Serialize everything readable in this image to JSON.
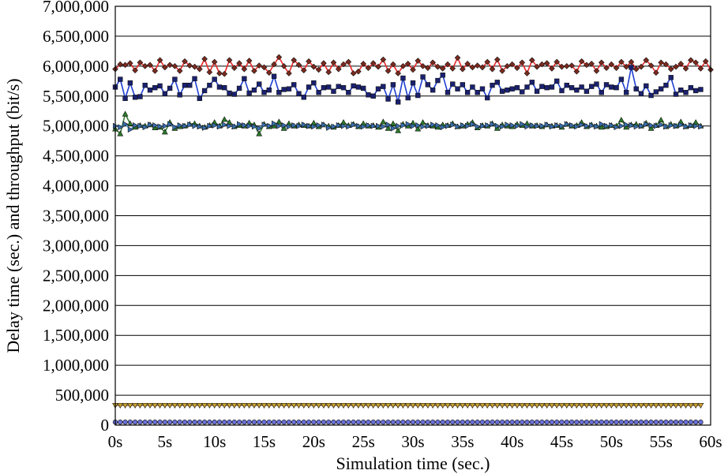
{
  "chart_data": {
    "type": "line",
    "xlabel": "Simulation time (sec.)",
    "ylabel": "Delay time (sec.) and throughput (bit/s)",
    "xlim": [
      0,
      60
    ],
    "ylim": [
      0,
      7000000
    ],
    "x_ticks": [
      {
        "value": 0,
        "label": "0s"
      },
      {
        "value": 5,
        "label": "5s"
      },
      {
        "value": 10,
        "label": "10s"
      },
      {
        "value": 15,
        "label": "15s"
      },
      {
        "value": 20,
        "label": "20s"
      },
      {
        "value": 25,
        "label": "25s"
      },
      {
        "value": 30,
        "label": "30s"
      },
      {
        "value": 35,
        "label": "35s"
      },
      {
        "value": 40,
        "label": "40s"
      },
      {
        "value": 45,
        "label": "45s"
      },
      {
        "value": 50,
        "label": "50s"
      },
      {
        "value": 55,
        "label": "55s"
      },
      {
        "value": 60,
        "label": "60s"
      }
    ],
    "y_ticks": [
      {
        "value": 0,
        "label": "0"
      },
      {
        "value": 500000,
        "label": "500,000"
      },
      {
        "value": 1000000,
        "label": "1,000,000"
      },
      {
        "value": 1500000,
        "label": "1,500,000"
      },
      {
        "value": 2000000,
        "label": "2,000,000"
      },
      {
        "value": 2500000,
        "label": "2,500,000"
      },
      {
        "value": 3000000,
        "label": "3,000,000"
      },
      {
        "value": 3500000,
        "label": "3,500,000"
      },
      {
        "value": 4000000,
        "label": "4,000,000"
      },
      {
        "value": 4500000,
        "label": "4,500,000"
      },
      {
        "value": 5000000,
        "label": "5,000,000"
      },
      {
        "value": 5500000,
        "label": "5,500,000"
      },
      {
        "value": 6000000,
        "label": "6,000,000"
      },
      {
        "value": 6500000,
        "label": "6,500,000"
      },
      {
        "value": 7000000,
        "label": "7,000,000"
      }
    ],
    "grid": "horizontal",
    "legend": "none",
    "x_start": 0,
    "x_step": 0.5,
    "series": [
      {
        "color": "#e8282a",
        "marker_color": "#7a2a1e",
        "marker": "diamond",
        "values": [
          5950000,
          6030000,
          6020000,
          6050000,
          5930000,
          6060000,
          6000000,
          6020000,
          5920000,
          6100000,
          5980000,
          6020000,
          6000000,
          5920000,
          6080000,
          6010000,
          5990000,
          5950000,
          6120000,
          5900000,
          6070000,
          5880000,
          5870000,
          6100000,
          5970000,
          6050000,
          5950000,
          6090000,
          5920000,
          6010000,
          5980000,
          5890000,
          6030000,
          6150000,
          6000000,
          5880000,
          6100000,
          6020000,
          5930000,
          6080000,
          5990000,
          5940000,
          6050000,
          5900000,
          6060000,
          5950000,
          6030000,
          6070000,
          5880000,
          5910000,
          6040000,
          5970000,
          6050000,
          5990000,
          6110000,
          5920000,
          6030000,
          5880000,
          6000000,
          6040000,
          5940000,
          6090000,
          6000000,
          5970000,
          6060000,
          5990000,
          5960000,
          6030000,
          5960000,
          6140000,
          5950000,
          6040000,
          5980000,
          6010000,
          5980000,
          6070000,
          5950000,
          6110000,
          5920000,
          6000000,
          6030000,
          5970000,
          6060000,
          5880000,
          6100000,
          5990000,
          6030000,
          6050000,
          5960000,
          6070000,
          5990000,
          6000000,
          6010000,
          5910000,
          6080000,
          6020000,
          6040000,
          5920000,
          6060000,
          5970000,
          6030000,
          5970000,
          6070000,
          5990000,
          6070000,
          5950000,
          5990000,
          6100000,
          6010000,
          5890000,
          6060000,
          6030000,
          5950000,
          5990000,
          6040000,
          5960000,
          6100000,
          6060000,
          5960000,
          6080000,
          5940000
        ]
      },
      {
        "color": "#1f3fd0",
        "marker_color": "#1a2170",
        "marker": "square",
        "values": [
          5650000,
          5780000,
          5460000,
          5720000,
          5480000,
          5490000,
          5680000,
          5600000,
          5640000,
          5670000,
          5540000,
          5630000,
          5780000,
          5520000,
          5680000,
          5680000,
          5790000,
          5460000,
          5590000,
          5680000,
          5780000,
          5650000,
          5640000,
          5550000,
          5530000,
          5630000,
          5790000,
          5550000,
          5600000,
          5700000,
          5560000,
          5600000,
          5830000,
          5560000,
          5610000,
          5620000,
          5690000,
          5540000,
          5480000,
          5650000,
          5720000,
          5560000,
          5640000,
          5650000,
          5580000,
          5660000,
          5640000,
          5560000,
          5670000,
          5650000,
          5630000,
          5520000,
          5500000,
          5620000,
          5660000,
          5450000,
          5690000,
          5400000,
          5800000,
          5470000,
          5720000,
          5510000,
          5820000,
          5690000,
          5600000,
          5760000,
          5850000,
          5560000,
          5700000,
          5620000,
          5690000,
          5560000,
          5650000,
          5560000,
          5620000,
          5470000,
          5680000,
          5730000,
          5580000,
          5600000,
          5620000,
          5640000,
          5570000,
          5650000,
          5730000,
          5580000,
          5660000,
          5640000,
          5650000,
          5750000,
          5590000,
          5680000,
          5640000,
          5600000,
          5650000,
          5580000,
          5660000,
          5700000,
          5560000,
          5690000,
          5650000,
          5640000,
          5780000,
          5560000,
          5980000,
          5620000,
          5540000,
          5670000,
          5510000,
          5570000,
          5620000,
          5680000,
          5810000,
          5530000,
          5600000,
          5560000,
          5640000,
          5590000,
          5610000
        ]
      },
      {
        "color": "#3c7f3a",
        "marker_color": "#2a7a2a",
        "marker": "triangle-up",
        "values": [
          4950000,
          4870000,
          5200000,
          5040000,
          4980000,
          5010000,
          5000000,
          5020000,
          4970000,
          4980000,
          4900000,
          5060000,
          4960000,
          4990000,
          5000000,
          5030000,
          5040000,
          5000000,
          4980000,
          5010000,
          5060000,
          5000000,
          5110000,
          5060000,
          4990000,
          5010000,
          5000000,
          5050000,
          5020000,
          4870000,
          5030000,
          4990000,
          5000000,
          5070000,
          4960000,
          5040000,
          5000000,
          5020000,
          5010000,
          5000000,
          5050000,
          4990000,
          5020000,
          5000000,
          4980000,
          5010000,
          5060000,
          5010000,
          5030000,
          4990000,
          5040000,
          5000000,
          5010000,
          4980000,
          5070000,
          4960000,
          5040000,
          4920000,
          5030000,
          5000000,
          5050000,
          4950000,
          5060000,
          5010000,
          5000000,
          4980000,
          5020000,
          5010000,
          5040000,
          4990000,
          5000000,
          5030000,
          5060000,
          4970000,
          5010000,
          5000000,
          5040000,
          4960000,
          5020000,
          5000000,
          4990000,
          5030000,
          5010000,
          5040000,
          5000000,
          5010000,
          4990000,
          5020000,
          5000000,
          5010000,
          4980000,
          5030000,
          5000000,
          5010000,
          5060000,
          4990000,
          5020000,
          5000000,
          4980000,
          4990000,
          5010000,
          5000000,
          5100000,
          4980000,
          5020000,
          5030000,
          5000000,
          5050000,
          4960000,
          5010000,
          5100000,
          4990000,
          5030000,
          5000000,
          5070000,
          4990000,
          5010000,
          5060000,
          5000000
        ]
      },
      {
        "color": "#4ea8e0",
        "marker_color": "#3a6fb0",
        "marker": "triangle-right",
        "values": [
          5000000,
          4980000,
          5030000,
          4940000,
          5010000,
          5000000,
          4980000,
          5020000,
          5010000,
          4990000,
          5000000,
          5030000,
          4980000,
          5010000,
          5000000,
          5020000,
          5000000,
          4990000,
          4970000,
          5000000,
          5010000,
          4990000,
          5020000,
          5000000,
          4990000,
          5030000,
          5010000,
          5000000,
          4990000,
          4960000,
          5020000,
          5000000,
          5040000,
          5000000,
          5010000,
          4990000,
          5010000,
          5000000,
          5020000,
          5000000,
          4990000,
          5010000,
          5020000,
          4970000,
          4990000,
          5010000,
          5000000,
          4990000,
          5020000,
          5000000,
          4990000,
          5010000,
          5000000,
          5000000,
          4990000,
          5020000,
          4960000,
          5000000,
          5010000,
          5030000,
          5000000,
          5010000,
          4990000,
          5000000,
          5020000,
          5010000,
          4980000,
          5000000,
          5020000,
          4990000,
          5010000,
          5000000,
          5030000,
          4990000,
          5000000,
          5010000,
          5030000,
          5000000,
          4990000,
          5020000,
          5010000,
          5000000,
          5030000,
          4990000,
          5010000,
          5000000,
          5000000,
          5020000,
          4990000,
          5010000,
          5000000,
          5030000,
          5010000,
          4990000,
          5020000,
          5000000,
          5010000,
          4990000,
          5030000,
          5000000,
          5010000,
          4980000,
          5000000,
          5020000,
          5010000,
          4990000,
          5000000,
          5030000,
          5010000,
          5000000,
          5020000,
          4990000,
          5010000,
          5000000,
          5020000,
          4990000,
          5010000,
          5000000,
          4990000
        ]
      },
      {
        "color": "#8a6a2a",
        "marker_color": "#c9a030",
        "marker": "triangle-down",
        "values": [
          330000,
          330000,
          330000,
          330000,
          330000,
          330000,
          330000,
          330000,
          330000,
          330000,
          330000,
          330000,
          330000,
          330000,
          330000,
          330000,
          330000,
          330000,
          330000,
          330000,
          330000,
          330000,
          330000,
          330000,
          330000,
          330000,
          330000,
          330000,
          330000,
          330000,
          330000,
          330000,
          330000,
          330000,
          330000,
          330000,
          330000,
          330000,
          330000,
          330000,
          330000,
          330000,
          330000,
          330000,
          330000,
          330000,
          330000,
          330000,
          330000,
          330000,
          330000,
          330000,
          330000,
          330000,
          330000,
          330000,
          330000,
          330000,
          330000,
          330000,
          330000,
          330000,
          330000,
          330000,
          330000,
          330000,
          330000,
          330000,
          330000,
          330000,
          330000,
          330000,
          330000,
          330000,
          330000,
          330000,
          330000,
          330000,
          330000,
          330000,
          330000,
          330000,
          330000,
          330000,
          330000,
          330000,
          330000,
          330000,
          330000,
          330000,
          330000,
          330000,
          330000,
          330000,
          330000,
          330000,
          330000,
          330000,
          330000,
          330000,
          330000,
          330000,
          330000,
          330000,
          330000,
          330000,
          330000,
          330000,
          330000,
          330000,
          330000,
          330000,
          330000,
          330000,
          330000,
          330000,
          330000,
          330000,
          330000
        ]
      },
      {
        "color": "#3b3f9e",
        "marker_color": "#6a70d8",
        "marker": "circle",
        "values": [
          50000,
          50000,
          50000,
          50000,
          50000,
          50000,
          50000,
          50000,
          50000,
          50000,
          50000,
          50000,
          50000,
          50000,
          50000,
          50000,
          50000,
          50000,
          50000,
          50000,
          50000,
          50000,
          50000,
          50000,
          50000,
          50000,
          50000,
          50000,
          50000,
          50000,
          50000,
          50000,
          50000,
          50000,
          50000,
          50000,
          50000,
          50000,
          50000,
          50000,
          50000,
          50000,
          50000,
          50000,
          50000,
          50000,
          50000,
          50000,
          50000,
          50000,
          50000,
          50000,
          50000,
          50000,
          50000,
          50000,
          50000,
          50000,
          50000,
          50000,
          50000,
          50000,
          50000,
          50000,
          50000,
          50000,
          50000,
          50000,
          50000,
          50000,
          50000,
          50000,
          50000,
          50000,
          50000,
          50000,
          50000,
          50000,
          50000,
          50000,
          50000,
          50000,
          50000,
          50000,
          50000,
          50000,
          50000,
          50000,
          50000,
          50000,
          50000,
          50000,
          50000,
          50000,
          50000,
          50000,
          50000,
          50000,
          50000,
          50000,
          50000,
          50000,
          50000,
          50000,
          50000,
          50000,
          50000,
          50000,
          50000,
          50000,
          50000,
          50000,
          50000,
          50000,
          50000,
          50000,
          50000,
          50000,
          50000
        ]
      }
    ]
  }
}
